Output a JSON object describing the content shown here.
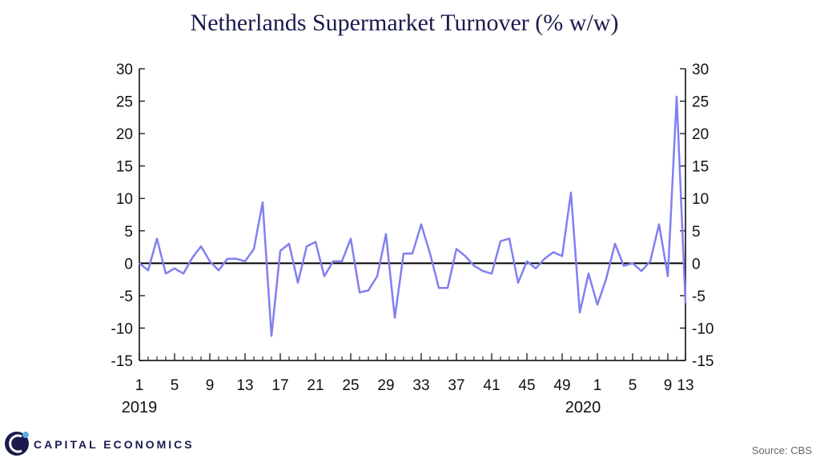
{
  "chart_data": {
    "type": "line",
    "title": "Netherlands Supermarket Turnover (% w/w)",
    "source": "Source: CBS",
    "brand": "CAPITAL ECONOMICS",
    "ylim": [
      -15,
      30
    ],
    "y_ticks": [
      30,
      25,
      20,
      15,
      10,
      5,
      0,
      -5,
      -10,
      -15
    ],
    "y_tick_labels": [
      "30",
      "25",
      "20",
      "15",
      "10",
      "5",
      "0",
      "-5",
      "-10",
      "-15"
    ],
    "x_tick_labels": [
      "1",
      "5",
      "9",
      "13",
      "17",
      "21",
      "25",
      "29",
      "33",
      "37",
      "41",
      "45",
      "49",
      "1",
      "5",
      "9",
      "13"
    ],
    "year_labels": [
      "2019",
      "2020"
    ],
    "grid": false,
    "legend": "none",
    "series_color": "#8080f0",
    "series": [
      {
        "values": [
          0.0,
          -1.1,
          3.8,
          -1.6,
          -0.8,
          -1.6,
          0.8,
          2.6,
          0.3,
          -1.1,
          0.7,
          0.7,
          0.3,
          2.2,
          9.4,
          -11.2,
          1.9,
          3.0,
          -3.0,
          2.6,
          3.3,
          -2.0,
          0.3,
          0.3,
          3.8,
          -4.5,
          -4.2,
          -2.0,
          4.5,
          -8.4,
          1.5,
          1.5,
          6.0,
          1.5,
          -3.8,
          -3.8,
          2.2,
          1.1,
          -0.4,
          -1.2,
          -1.6,
          3.4,
          3.8,
          -3.0,
          0.3,
          -0.8,
          0.7,
          1.7,
          1.1,
          10.9,
          -7.6,
          -1.6,
          -6.4,
          -2.4,
          3.0,
          -0.4,
          0.0,
          -1.2,
          0.3,
          6.0,
          -2.0,
          25.7,
          -6.1
        ]
      }
    ]
  }
}
